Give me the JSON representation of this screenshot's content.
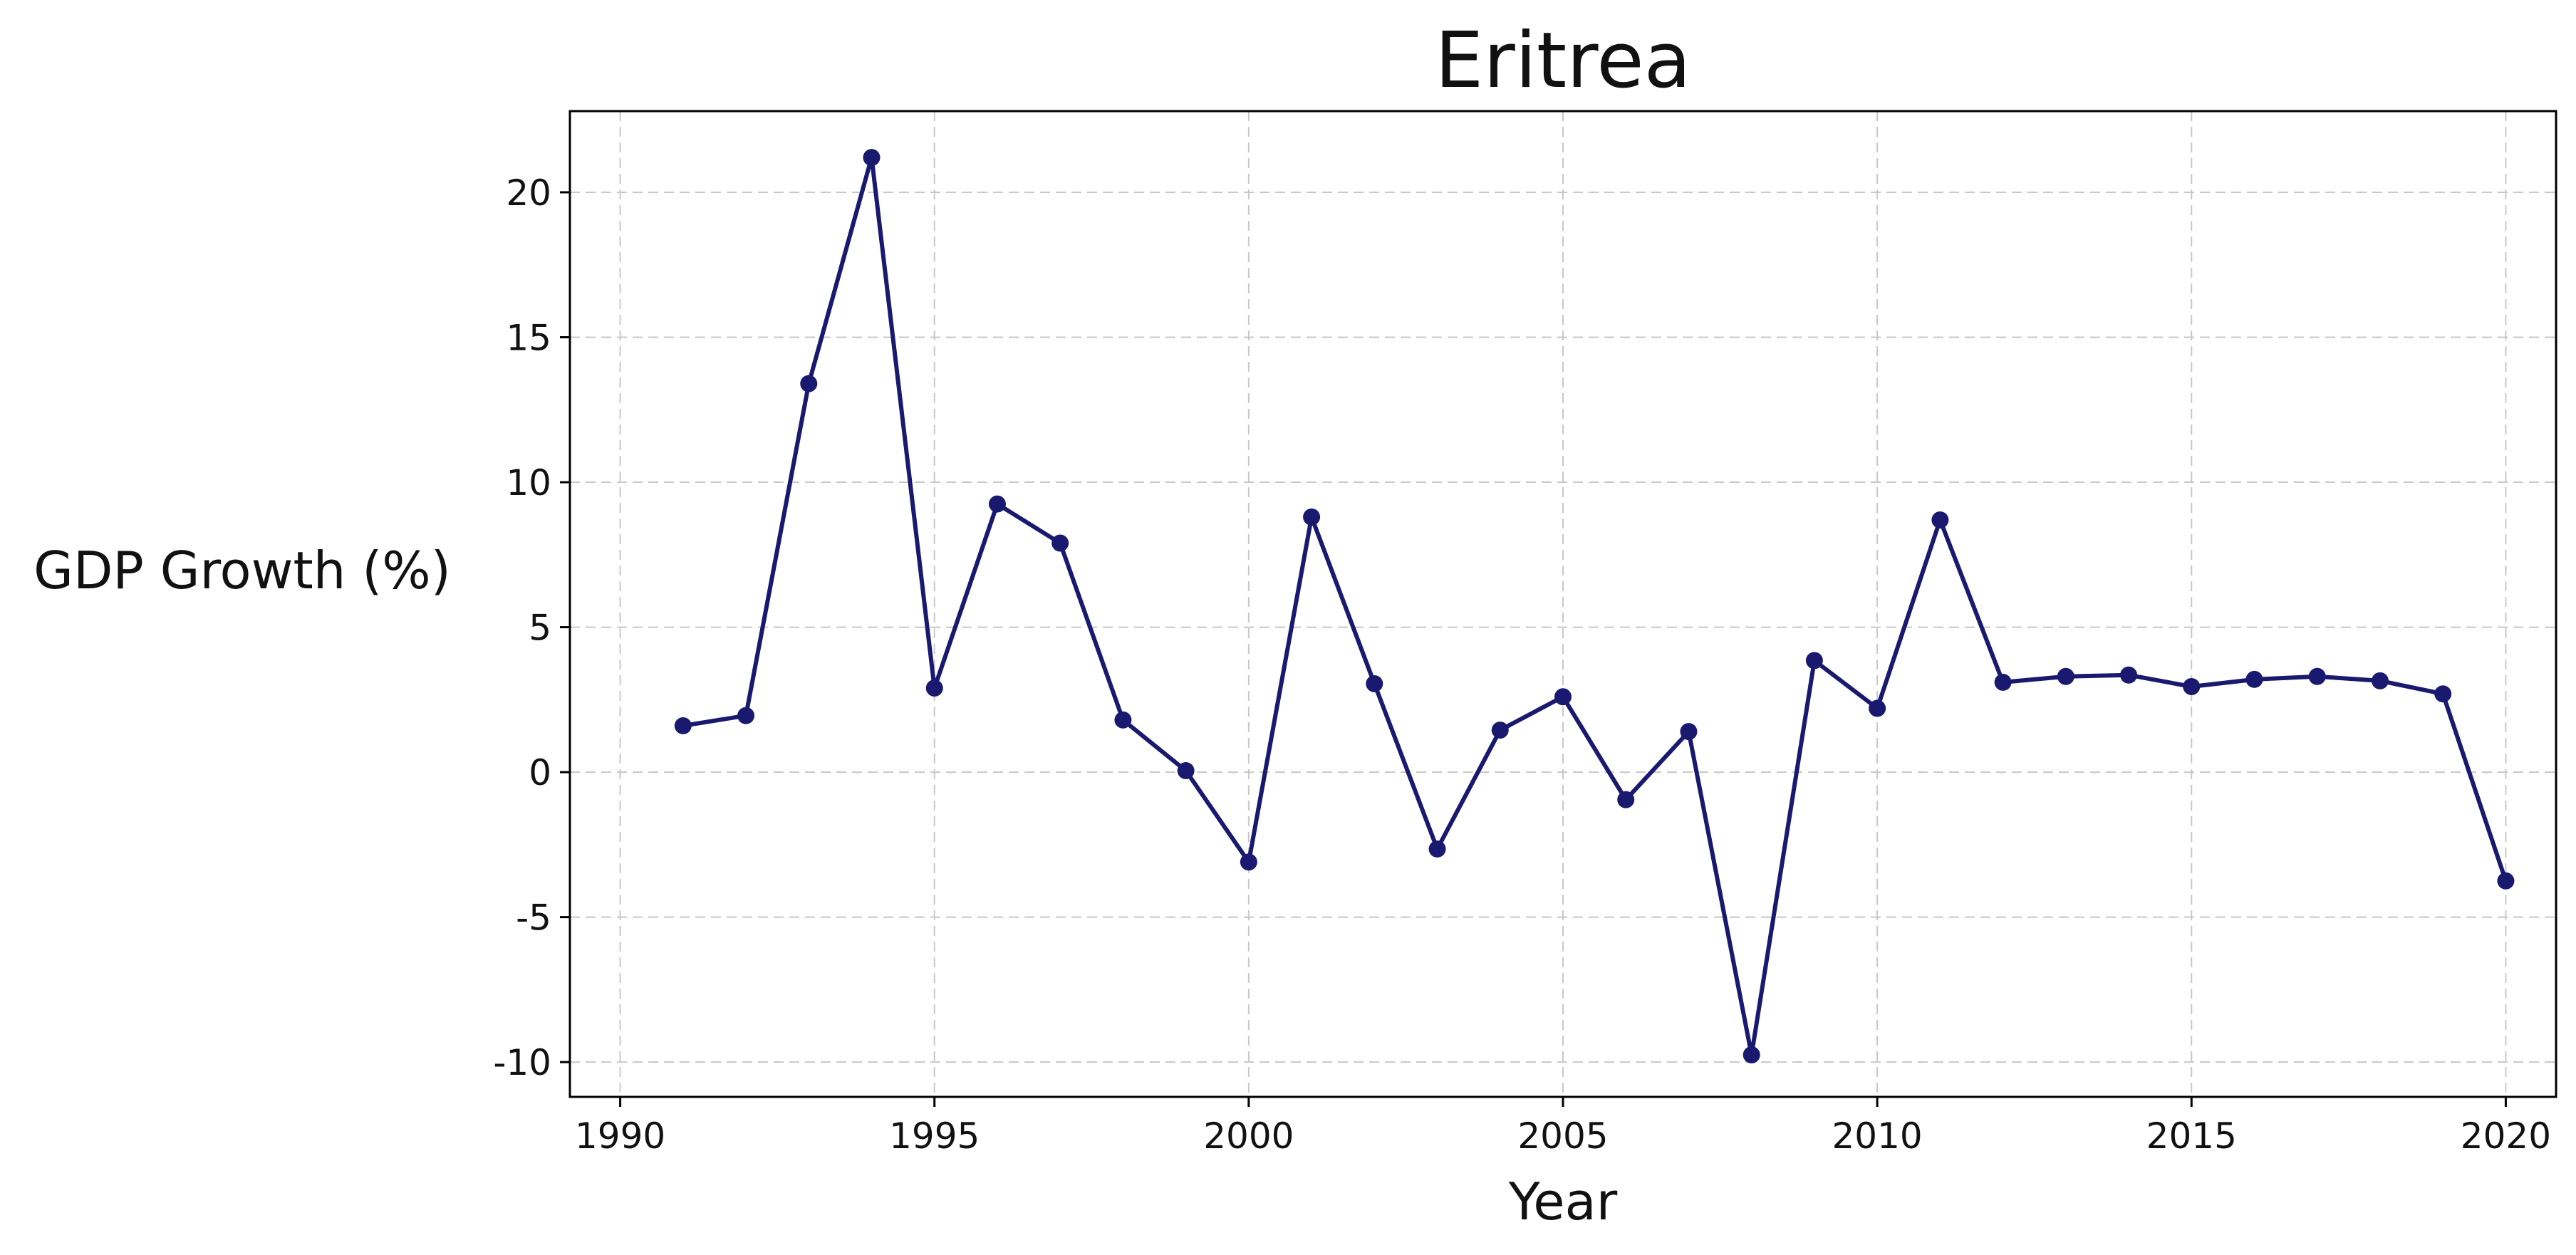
{
  "chart_data": {
    "type": "line",
    "title": "Eritrea",
    "xlabel": "Year",
    "ylabel": "GDP Growth (%)",
    "xlim": [
      1989.2,
      2020.8
    ],
    "ylim": [
      -11.2,
      22.8
    ],
    "grid": true,
    "x_ticks": [
      1990,
      1995,
      2000,
      2005,
      2010,
      2015,
      2020
    ],
    "y_ticks": [
      -10,
      -5,
      0,
      5,
      10,
      15,
      20
    ],
    "x_tick_labels": [
      "1990",
      "1995",
      "2000",
      "2005",
      "2010",
      "2015",
      "2020"
    ],
    "y_tick_labels": [
      "-10",
      "-5",
      "0",
      "5",
      "10",
      "15",
      "20"
    ],
    "color": "#191970",
    "x": [
      1991,
      1992,
      1993,
      1994,
      1995,
      1996,
      1997,
      1998,
      1999,
      2000,
      2001,
      2002,
      2003,
      2004,
      2005,
      2006,
      2007,
      2008,
      2009,
      2010,
      2011,
      2012,
      2013,
      2014,
      2015,
      2016,
      2017,
      2018,
      2019,
      2020
    ],
    "y": [
      1.6,
      1.95,
      13.4,
      21.2,
      2.9,
      9.25,
      7.9,
      1.8,
      0.05,
      -3.1,
      8.8,
      3.05,
      -2.65,
      1.45,
      2.6,
      -0.95,
      1.4,
      -9.75,
      3.85,
      2.2,
      8.7,
      3.1,
      3.3,
      3.35,
      2.95,
      3.2,
      3.3,
      3.15,
      2.7,
      -3.75
    ]
  }
}
